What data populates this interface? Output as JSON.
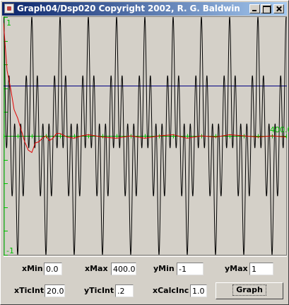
{
  "window": {
    "title": "Graph04/Dsp020 Copyright 2002, R. G. Baldwin",
    "icon": "java-app-icon",
    "buttons": [
      "minimize-icon",
      "maximize-icon",
      "close-icon"
    ]
  },
  "plot": {
    "y_max_label": "1",
    "y_min_label": "-1",
    "x_max_label": "400.0",
    "colors": {
      "background": "#d4d0c8",
      "axes": "#00c000",
      "signal": "#000000",
      "running_average": "#e00000",
      "reference_line": "#000080",
      "inner_border": "#808080"
    }
  },
  "chart_data": {
    "type": "line",
    "title": "",
    "xlabel": "",
    "ylabel": "",
    "xlim": [
      0,
      400
    ],
    "ylim": [
      -1,
      1
    ],
    "x_tick_interval": 20,
    "y_tick_interval": 0.2,
    "series": [
      {
        "role": "signal",
        "color": "#000000",
        "description": "sum of sinusoids with period ~40 x-units envelope",
        "peak_values_approx": [
          1.0,
          -1.0
        ],
        "envelope_period": 40,
        "carrier_period": 8
      },
      {
        "role": "running_average",
        "color": "#e00000",
        "points": [
          [
            0,
            0.95
          ],
          [
            5,
            0.55
          ],
          [
            10,
            0.4
          ],
          [
            15,
            0.22
          ],
          [
            20,
            0.15
          ],
          [
            25,
            0.05
          ],
          [
            30,
            -0.05
          ],
          [
            35,
            -0.12
          ],
          [
            40,
            -0.14
          ],
          [
            45,
            -0.06
          ],
          [
            50,
            -0.05
          ],
          [
            55,
            -0.02
          ],
          [
            60,
            0.0
          ],
          [
            65,
            -0.04
          ],
          [
            70,
            -0.02
          ],
          [
            75,
            0.02
          ],
          [
            80,
            0.02
          ],
          [
            90,
            -0.01
          ],
          [
            100,
            -0.02
          ],
          [
            110,
            0.0
          ],
          [
            120,
            0.01
          ],
          [
            140,
            -0.01
          ],
          [
            160,
            -0.02
          ],
          [
            180,
            0.0
          ],
          [
            200,
            -0.02
          ],
          [
            220,
            0.0
          ],
          [
            240,
            0.01
          ],
          [
            260,
            -0.02
          ],
          [
            280,
            0.0
          ],
          [
            300,
            -0.01
          ],
          [
            320,
            0.01
          ],
          [
            340,
            0.0
          ],
          [
            360,
            -0.01
          ],
          [
            380,
            0.0
          ],
          [
            400,
            -0.01
          ]
        ]
      },
      {
        "role": "reference",
        "color": "#000080",
        "y": 0.42
      }
    ]
  },
  "controls": {
    "xMin": {
      "label": "xMin",
      "value": "0.0"
    },
    "xMax": {
      "label": "xMax",
      "value": "400.0"
    },
    "yMin": {
      "label": "yMin",
      "value": "-1"
    },
    "yMax": {
      "label": "yMax",
      "value": "1"
    },
    "xTicInt": {
      "label": "xTicInt",
      "value": "20.0"
    },
    "yTicInt": {
      "label": "yTicInt",
      "value": ".2"
    },
    "xCalcInc": {
      "label": "xCalcInc",
      "value": "1.0"
    },
    "graph_button": "Graph"
  }
}
